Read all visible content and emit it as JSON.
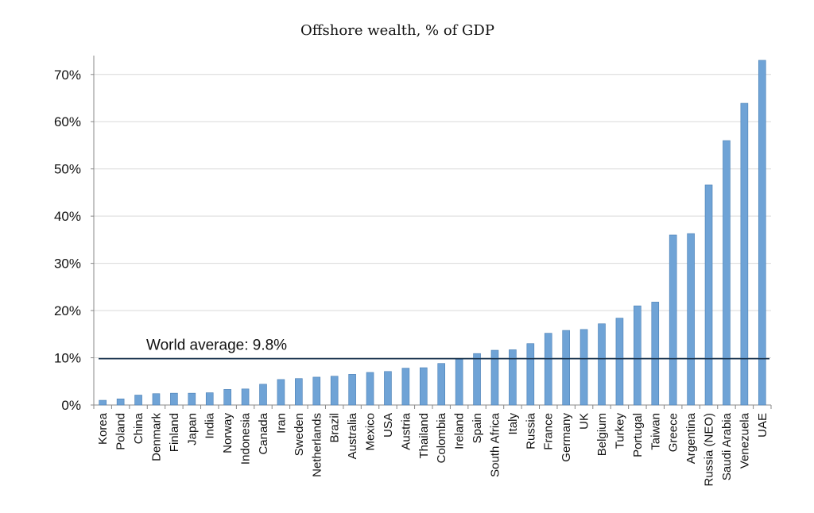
{
  "chart_data": {
    "type": "bar",
    "title": "Offshore wealth, % of GDP",
    "xlabel": "",
    "ylabel": "",
    "ylim": [
      0,
      74
    ],
    "yticks": [
      0,
      10,
      20,
      30,
      40,
      50,
      60,
      70
    ],
    "ytick_labels": [
      "0%",
      "10%",
      "20%",
      "30%",
      "40%",
      "50%",
      "60%",
      "70%"
    ],
    "grid": true,
    "bar_color": "#6fa3d6",
    "bar_edge_color": "#4a7fb5",
    "categories": [
      "Korea",
      "Poland",
      "China",
      "Denmark",
      "Finland",
      "Japan",
      "India",
      "Norway",
      "Indonesia",
      "Canada",
      "Iran",
      "Sweden",
      "Netherlands",
      "Brazil",
      "Australia",
      "Mexico",
      "USA",
      "Austria",
      "Thailand",
      "Colombia",
      "Ireland",
      "Spain",
      "South Africa",
      "Italy",
      "Russia",
      "France",
      "Germany",
      "UK",
      "Belgium",
      "Turkey",
      "Portugal",
      "Taiwan",
      "Greece",
      "Argentina",
      "Russia (NEO)",
      "Saudi Arabia",
      "Venezuela",
      "UAE"
    ],
    "values": [
      1.0,
      1.3,
      2.1,
      2.4,
      2.5,
      2.5,
      2.6,
      3.3,
      3.4,
      4.4,
      5.4,
      5.6,
      5.9,
      6.1,
      6.5,
      6.9,
      7.1,
      7.8,
      7.9,
      8.8,
      9.7,
      10.9,
      11.6,
      11.7,
      13.0,
      15.2,
      15.8,
      16.0,
      17.2,
      18.4,
      21.0,
      21.8,
      36.0,
      36.3,
      46.6,
      56.0,
      63.9,
      73.0
    ],
    "reference_line": {
      "value": 9.8,
      "label": "World average: 9.8%",
      "color": "#17324d"
    }
  }
}
